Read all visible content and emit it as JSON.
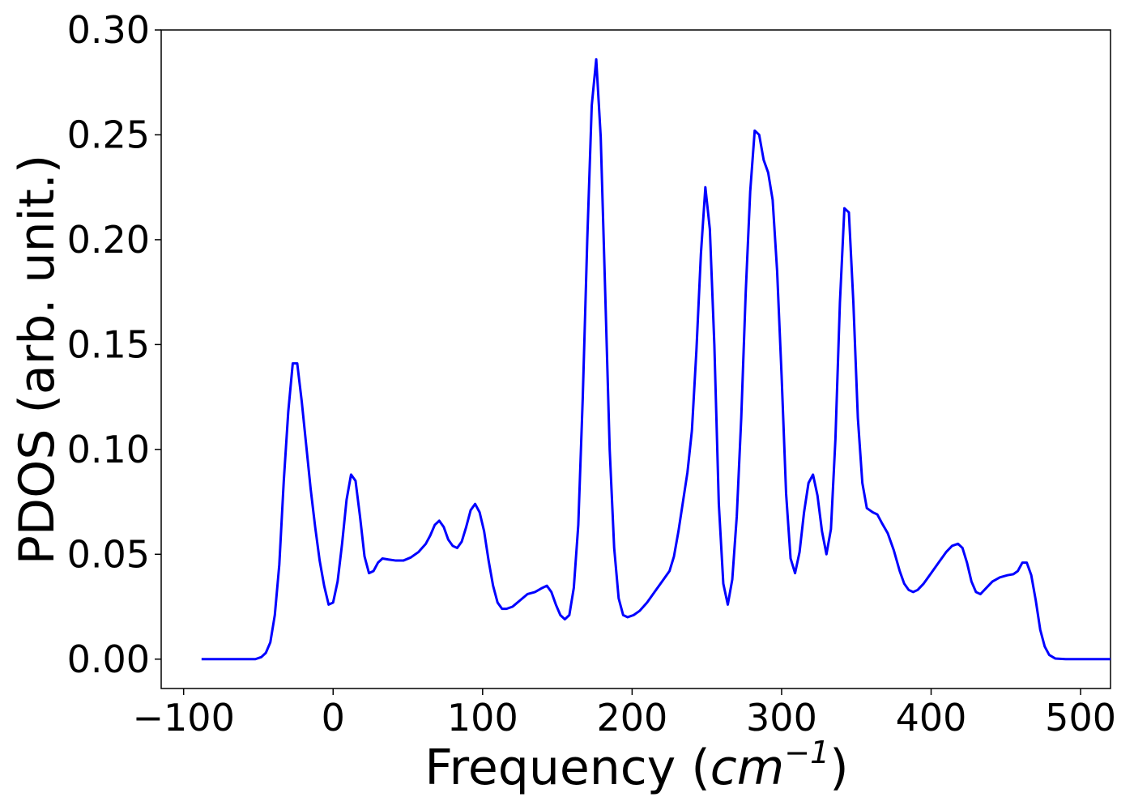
{
  "chart_data": {
    "type": "line",
    "xlabel_text": "Frequency (",
    "xlabel_math": "cm",
    "xlabel_sup": "−1",
    "xlabel_close": ")",
    "ylabel": "PDOS (arb. unit.)",
    "xlim": [
      -115,
      520
    ],
    "ylim": [
      -0.014,
      0.3
    ],
    "xticks": [
      -100,
      0,
      100,
      200,
      300,
      400,
      500
    ],
    "xtick_labels": [
      "−100",
      "0",
      "100",
      "200",
      "300",
      "400",
      "500"
    ],
    "yticks": [
      0.0,
      0.05,
      0.1,
      0.15,
      0.2,
      0.25,
      0.3
    ],
    "ytick_labels": [
      "0.00",
      "0.05",
      "0.10",
      "0.15",
      "0.20",
      "0.25",
      "0.30"
    ],
    "grid": false,
    "line_color": "#0000ff",
    "series": [
      {
        "points": [
          [
            -88,
            0.0
          ],
          [
            -60,
            0.0
          ],
          [
            -52,
            0.0
          ],
          [
            -48,
            0.001
          ],
          [
            -45,
            0.003
          ],
          [
            -42,
            0.008
          ],
          [
            -39,
            0.021
          ],
          [
            -36,
            0.045
          ],
          [
            -33,
            0.085
          ],
          [
            -30,
            0.118
          ],
          [
            -27,
            0.141
          ],
          [
            -24,
            0.141
          ],
          [
            -21,
            0.123
          ],
          [
            -18,
            0.102
          ],
          [
            -15,
            0.081
          ],
          [
            -12,
            0.063
          ],
          [
            -9,
            0.047
          ],
          [
            -6,
            0.035
          ],
          [
            -3,
            0.026
          ],
          [
            0,
            0.027
          ],
          [
            3,
            0.037
          ],
          [
            6,
            0.055
          ],
          [
            9,
            0.076
          ],
          [
            12,
            0.088
          ],
          [
            15,
            0.085
          ],
          [
            18,
            0.068
          ],
          [
            21,
            0.049
          ],
          [
            24,
            0.041
          ],
          [
            27,
            0.042
          ],
          [
            30,
            0.046
          ],
          [
            33,
            0.048
          ],
          [
            37,
            0.0475
          ],
          [
            42,
            0.047
          ],
          [
            47,
            0.047
          ],
          [
            52,
            0.0485
          ],
          [
            57,
            0.051
          ],
          [
            62,
            0.055
          ],
          [
            65,
            0.059
          ],
          [
            68,
            0.064
          ],
          [
            71,
            0.066
          ],
          [
            74,
            0.063
          ],
          [
            77,
            0.057
          ],
          [
            80,
            0.054
          ],
          [
            83,
            0.053
          ],
          [
            86,
            0.056
          ],
          [
            89,
            0.063
          ],
          [
            92,
            0.071
          ],
          [
            95,
            0.074
          ],
          [
            98,
            0.07
          ],
          [
            101,
            0.061
          ],
          [
            104,
            0.047
          ],
          [
            107,
            0.035
          ],
          [
            110,
            0.027
          ],
          [
            113,
            0.024
          ],
          [
            116,
            0.024
          ],
          [
            120,
            0.025
          ],
          [
            125,
            0.028
          ],
          [
            130,
            0.031
          ],
          [
            135,
            0.032
          ],
          [
            140,
            0.034
          ],
          [
            143,
            0.035
          ],
          [
            146,
            0.032
          ],
          [
            149,
            0.026
          ],
          [
            152,
            0.021
          ],
          [
            155,
            0.019
          ],
          [
            158,
            0.021
          ],
          [
            161,
            0.034
          ],
          [
            164,
            0.064
          ],
          [
            167,
            0.125
          ],
          [
            170,
            0.2
          ],
          [
            173,
            0.264
          ],
          [
            176,
            0.286
          ],
          [
            179,
            0.249
          ],
          [
            182,
            0.175
          ],
          [
            185,
            0.1
          ],
          [
            188,
            0.053
          ],
          [
            191,
            0.029
          ],
          [
            194,
            0.021
          ],
          [
            197,
            0.02
          ],
          [
            201,
            0.021
          ],
          [
            205,
            0.023
          ],
          [
            210,
            0.027
          ],
          [
            215,
            0.032
          ],
          [
            220,
            0.037
          ],
          [
            225,
            0.042
          ],
          [
            228,
            0.049
          ],
          [
            231,
            0.061
          ],
          [
            234,
            0.075
          ],
          [
            237,
            0.089
          ],
          [
            240,
            0.109
          ],
          [
            243,
            0.147
          ],
          [
            246,
            0.193
          ],
          [
            249,
            0.225
          ],
          [
            252,
            0.205
          ],
          [
            255,
            0.15
          ],
          [
            258,
            0.074
          ],
          [
            261,
            0.036
          ],
          [
            264,
            0.026
          ],
          [
            267,
            0.038
          ],
          [
            270,
            0.068
          ],
          [
            273,
            0.115
          ],
          [
            276,
            0.175
          ],
          [
            279,
            0.223
          ],
          [
            282,
            0.252
          ],
          [
            285,
            0.25
          ],
          [
            288,
            0.238
          ],
          [
            291,
            0.232
          ],
          [
            294,
            0.219
          ],
          [
            297,
            0.185
          ],
          [
            300,
            0.135
          ],
          [
            303,
            0.079
          ],
          [
            306,
            0.048
          ],
          [
            309,
            0.041
          ],
          [
            312,
            0.051
          ],
          [
            315,
            0.07
          ],
          [
            318,
            0.084
          ],
          [
            321,
            0.088
          ],
          [
            324,
            0.078
          ],
          [
            327,
            0.061
          ],
          [
            330,
            0.05
          ],
          [
            333,
            0.062
          ],
          [
            336,
            0.105
          ],
          [
            339,
            0.17
          ],
          [
            342,
            0.215
          ],
          [
            345,
            0.213
          ],
          [
            348,
            0.17
          ],
          [
            351,
            0.115
          ],
          [
            354,
            0.084
          ],
          [
            357,
            0.072
          ],
          [
            361,
            0.07
          ],
          [
            364,
            0.069
          ],
          [
            367,
            0.065
          ],
          [
            371,
            0.06
          ],
          [
            375,
            0.052
          ],
          [
            379,
            0.042
          ],
          [
            382,
            0.036
          ],
          [
            385,
            0.033
          ],
          [
            388,
            0.032
          ],
          [
            391,
            0.033
          ],
          [
            395,
            0.036
          ],
          [
            400,
            0.041
          ],
          [
            405,
            0.046
          ],
          [
            410,
            0.051
          ],
          [
            414,
            0.054
          ],
          [
            418,
            0.055
          ],
          [
            421,
            0.053
          ],
          [
            424,
            0.046
          ],
          [
            427,
            0.037
          ],
          [
            430,
            0.032
          ],
          [
            433,
            0.031
          ],
          [
            437,
            0.034
          ],
          [
            441,
            0.037
          ],
          [
            446,
            0.039
          ],
          [
            451,
            0.04
          ],
          [
            455,
            0.0405
          ],
          [
            458,
            0.042
          ],
          [
            461,
            0.046
          ],
          [
            464,
            0.046
          ],
          [
            467,
            0.04
          ],
          [
            470,
            0.028
          ],
          [
            473,
            0.014
          ],
          [
            476,
            0.006
          ],
          [
            479,
            0.002
          ],
          [
            483,
            0.0003
          ],
          [
            490,
            0.0
          ],
          [
            510,
            0.0
          ],
          [
            532,
            0.0
          ]
        ]
      }
    ]
  }
}
